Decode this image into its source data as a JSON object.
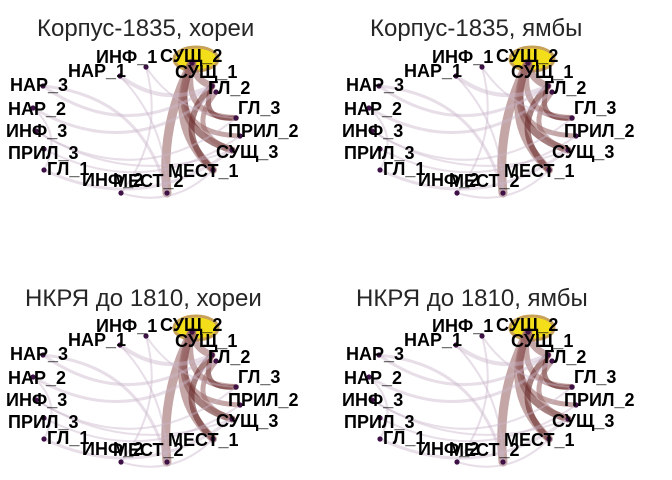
{
  "panels": [
    {
      "title": "Корпус-1835, хореи"
    },
    {
      "title": "Корпус-1835, ямбы"
    },
    {
      "title": "НКРЯ до 1810, хореи"
    },
    {
      "title": "НКРЯ до 1810, ямбы"
    }
  ],
  "nodes": [
    {
      "id": "СУЩ_2",
      "label": "СУЩ_2"
    },
    {
      "id": "СУЩ_1",
      "label": "СУЩ_1"
    },
    {
      "id": "ГЛ_2",
      "label": "ГЛ_2"
    },
    {
      "id": "ГЛ_3",
      "label": "ГЛ_3"
    },
    {
      "id": "ПРИЛ_2",
      "label": "ПРИЛ_2"
    },
    {
      "id": "СУЩ_3",
      "label": "СУЩ_3"
    },
    {
      "id": "МЕСТ_1",
      "label": "МЕСТ_1"
    },
    {
      "id": "МЕСТ_2",
      "label": "МЕСТ_2"
    },
    {
      "id": "ИНФ_2",
      "label": "ИНФ_2"
    },
    {
      "id": "ГЛ_1",
      "label": "ГЛ_1"
    },
    {
      "id": "ПРИЛ_3",
      "label": "ПРИЛ_3"
    },
    {
      "id": "ИНФ_3",
      "label": "ИНФ_3"
    },
    {
      "id": "НАР_2",
      "label": "НАР_2"
    },
    {
      "id": "НАР_3",
      "label": "НАР_3"
    },
    {
      "id": "НАР_1",
      "label": "НАР_1"
    },
    {
      "id": "ИНФ_1",
      "label": "ИНФ_1"
    }
  ],
  "colors": {
    "node": "#3d1046",
    "edge_strong": "#6b2a2a",
    "edge_medium": "#9c6b6b",
    "edge_faint": "#c9b6c9",
    "loop_ring": "#c9a25a",
    "loop_fill": "#f3de1a"
  }
}
